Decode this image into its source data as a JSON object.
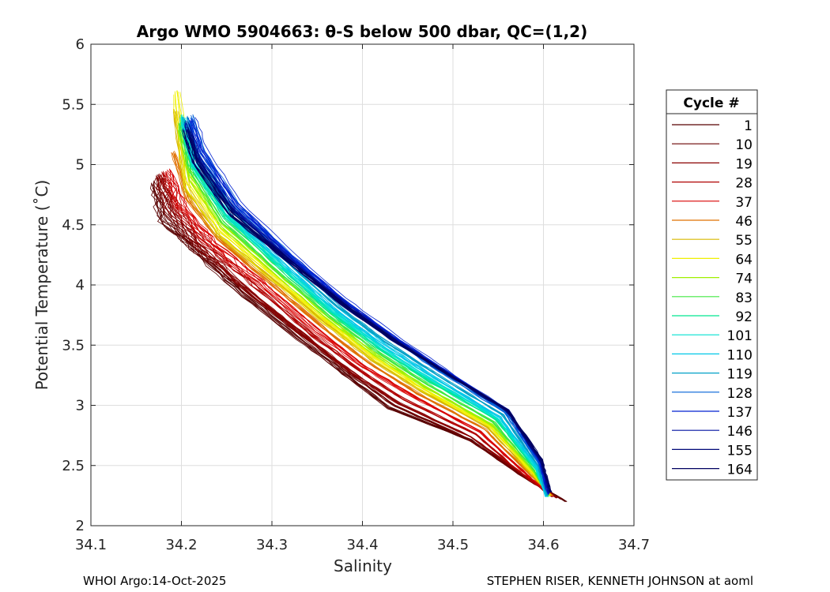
{
  "chart_data": {
    "type": "line",
    "title": "Argo WMO 5904663: θ-S below 500 dbar,  QC=(1,2)",
    "xlabel": "Salinity",
    "ylabel": "Potential Temperature (˚C)",
    "xlim": [
      34.1,
      34.7
    ],
    "ylim": [
      2,
      6
    ],
    "xticks": [
      "34.1",
      "34.2",
      "34.3",
      "34.4",
      "34.5",
      "34.6",
      "34.7"
    ],
    "yticks": [
      "2",
      "2.5",
      "3",
      "3.5",
      "4",
      "4.5",
      "5",
      "5.5",
      "6"
    ],
    "grid": true,
    "legend": {
      "title": "Cycle #",
      "placement": "right",
      "entries": [
        {
          "label": "1",
          "color": "#580000"
        },
        {
          "label": "10",
          "color": "#6a0000"
        },
        {
          "label": "19",
          "color": "#8a0000"
        },
        {
          "label": "28",
          "color": "#b00000"
        },
        {
          "label": "37",
          "color": "#d80000"
        },
        {
          "label": "46",
          "color": "#e07000"
        },
        {
          "label": "55",
          "color": "#d8b800"
        },
        {
          "label": "64",
          "color": "#f0f000"
        },
        {
          "label": "74",
          "color": "#a0f000"
        },
        {
          "label": "83",
          "color": "#40e840"
        },
        {
          "label": "92",
          "color": "#00e890"
        },
        {
          "label": "101",
          "color": "#00e0d0"
        },
        {
          "label": "110",
          "color": "#00c8e8"
        },
        {
          "label": "119",
          "color": "#00a0c8"
        },
        {
          "label": "128",
          "color": "#0060d8"
        },
        {
          "label": "137",
          "color": "#0020d0"
        },
        {
          "label": "146",
          "color": "#0010a0"
        },
        {
          "label": "155",
          "color": "#000878"
        },
        {
          "label": "164",
          "color": "#000060"
        }
      ]
    },
    "series": [
      {
        "name": "1",
        "color": "#580000",
        "x": [
          34.625,
          34.59,
          34.52,
          34.43,
          34.38,
          34.33,
          34.27,
          34.215,
          34.18,
          34.17
        ],
        "y": [
          2.2,
          2.36,
          2.71,
          2.98,
          3.27,
          3.56,
          3.92,
          4.3,
          4.55,
          4.85
        ]
      },
      {
        "name": "10",
        "color": "#6a0000",
        "x": [
          34.62,
          34.585,
          34.515,
          34.435,
          34.39,
          34.34,
          34.28,
          34.22,
          34.185,
          34.175
        ],
        "y": [
          2.22,
          2.37,
          2.73,
          3.0,
          3.25,
          3.55,
          3.9,
          4.28,
          4.6,
          4.9
        ]
      },
      {
        "name": "19",
        "color": "#8a0000",
        "x": [
          34.615,
          34.585,
          34.52,
          34.44,
          34.39,
          34.34,
          34.28,
          34.225,
          34.19,
          34.175
        ],
        "y": [
          2.23,
          2.38,
          2.74,
          3.02,
          3.27,
          3.56,
          3.92,
          4.3,
          4.62,
          4.92
        ]
      },
      {
        "name": "28",
        "color": "#b00000",
        "x": [
          34.61,
          34.583,
          34.525,
          34.445,
          34.395,
          34.345,
          34.29,
          34.23,
          34.195,
          34.18
        ],
        "y": [
          2.24,
          2.39,
          2.76,
          3.05,
          3.3,
          3.58,
          3.94,
          4.32,
          4.64,
          4.93
        ]
      },
      {
        "name": "37",
        "color": "#d80000",
        "x": [
          34.61,
          34.585,
          34.53,
          34.455,
          34.4,
          34.35,
          34.295,
          34.235,
          34.2,
          34.185
        ],
        "y": [
          2.25,
          2.4,
          2.78,
          3.08,
          3.33,
          3.62,
          3.97,
          4.34,
          4.66,
          4.95
        ]
      },
      {
        "name": "46",
        "color": "#e07000",
        "x": [
          34.61,
          34.586,
          34.535,
          34.46,
          34.405,
          34.355,
          34.3,
          34.24,
          34.205,
          34.19
        ],
        "y": [
          2.25,
          2.42,
          2.8,
          3.1,
          3.36,
          3.65,
          4.0,
          4.38,
          4.72,
          5.1
        ]
      },
      {
        "name": "55",
        "color": "#d8b800",
        "x": [
          34.608,
          34.587,
          34.538,
          34.465,
          34.41,
          34.36,
          34.3,
          34.24,
          34.205,
          34.193
        ],
        "y": [
          2.25,
          2.43,
          2.82,
          3.12,
          3.38,
          3.68,
          4.05,
          4.42,
          4.8,
          5.45
        ]
      },
      {
        "name": "64",
        "color": "#f0f000",
        "x": [
          34.607,
          34.588,
          34.54,
          34.468,
          34.412,
          34.36,
          34.302,
          34.243,
          34.208,
          34.195
        ],
        "y": [
          2.25,
          2.44,
          2.83,
          3.13,
          3.4,
          3.7,
          4.07,
          4.45,
          4.85,
          5.6
        ]
      },
      {
        "name": "74",
        "color": "#a0f000",
        "x": [
          34.606,
          34.589,
          34.543,
          34.47,
          34.415,
          34.363,
          34.305,
          34.245,
          34.21,
          34.198
        ],
        "y": [
          2.25,
          2.45,
          2.84,
          3.15,
          3.42,
          3.72,
          4.1,
          4.5,
          4.9,
          5.3
        ]
      },
      {
        "name": "83",
        "color": "#40e840",
        "x": [
          34.605,
          34.59,
          34.545,
          34.473,
          34.418,
          34.365,
          34.307,
          34.247,
          34.212,
          34.2
        ],
        "y": [
          2.24,
          2.46,
          2.86,
          3.17,
          3.44,
          3.74,
          4.12,
          4.53,
          4.95,
          5.35
        ]
      },
      {
        "name": "92",
        "color": "#00e890",
        "x": [
          34.604,
          34.591,
          34.548,
          34.476,
          34.42,
          34.367,
          34.31,
          34.25,
          34.213,
          34.202
        ],
        "y": [
          2.24,
          2.47,
          2.88,
          3.19,
          3.46,
          3.76,
          4.14,
          4.56,
          4.98,
          5.38
        ]
      },
      {
        "name": "101",
        "color": "#00e0d0",
        "x": [
          34.603,
          34.592,
          34.55,
          34.478,
          34.422,
          34.369,
          34.312,
          34.252,
          34.215,
          34.203
        ],
        "y": [
          2.24,
          2.48,
          2.89,
          3.21,
          3.48,
          3.78,
          4.16,
          4.58,
          5.0,
          5.4
        ]
      },
      {
        "name": "110",
        "color": "#00c8e8",
        "x": [
          34.603,
          34.593,
          34.552,
          34.48,
          34.424,
          34.371,
          34.314,
          34.254,
          34.216,
          34.204
        ],
        "y": [
          2.24,
          2.49,
          2.9,
          3.23,
          3.5,
          3.8,
          4.18,
          4.6,
          5.02,
          5.38
        ]
      },
      {
        "name": "119",
        "color": "#00a0c8",
        "x": [
          34.604,
          34.594,
          34.555,
          34.483,
          34.427,
          34.373,
          34.316,
          34.256,
          34.218,
          34.205
        ],
        "y": [
          2.25,
          2.5,
          2.92,
          3.25,
          3.52,
          3.82,
          4.2,
          4.62,
          5.05,
          5.38
        ]
      },
      {
        "name": "128",
        "color": "#0060d8",
        "x": [
          34.605,
          34.595,
          34.558,
          34.487,
          34.432,
          34.378,
          34.32,
          34.26,
          34.222,
          34.21
        ],
        "y": [
          2.26,
          2.52,
          2.94,
          3.28,
          3.56,
          3.86,
          4.23,
          4.66,
          5.1,
          5.4
        ]
      },
      {
        "name": "137",
        "color": "#0020d0",
        "x": [
          34.605,
          34.596,
          34.56,
          34.49,
          34.435,
          34.38,
          34.322,
          34.262,
          34.224,
          34.212
        ],
        "y": [
          2.26,
          2.53,
          2.96,
          3.3,
          3.58,
          3.88,
          4.25,
          4.68,
          5.12,
          5.38
        ]
      },
      {
        "name": "146",
        "color": "#0010a0",
        "x": [
          34.606,
          34.597,
          34.561,
          34.49,
          34.434,
          34.379,
          34.32,
          34.258,
          34.22,
          34.207
        ],
        "y": [
          2.27,
          2.54,
          2.96,
          3.29,
          3.56,
          3.86,
          4.22,
          4.64,
          5.06,
          5.35
        ]
      },
      {
        "name": "155",
        "color": "#000878",
        "x": [
          34.607,
          34.597,
          34.56,
          34.489,
          34.432,
          34.377,
          34.318,
          34.256,
          34.217,
          34.205
        ],
        "y": [
          2.28,
          2.54,
          2.95,
          3.28,
          3.55,
          3.84,
          4.2,
          4.6,
          5.02,
          5.3
        ]
      },
      {
        "name": "164",
        "color": "#000060",
        "x": [
          34.608,
          34.598,
          34.561,
          34.49,
          34.433,
          34.378,
          34.318,
          34.255,
          34.216,
          34.204
        ],
        "y": [
          2.28,
          2.55,
          2.96,
          3.28,
          3.55,
          3.84,
          4.2,
          4.58,
          5.0,
          5.28
        ]
      }
    ]
  },
  "footer": {
    "left": "WHOI Argo:14-Oct-2025",
    "right": "STEPHEN RISER, KENNETH JOHNSON at aoml"
  }
}
